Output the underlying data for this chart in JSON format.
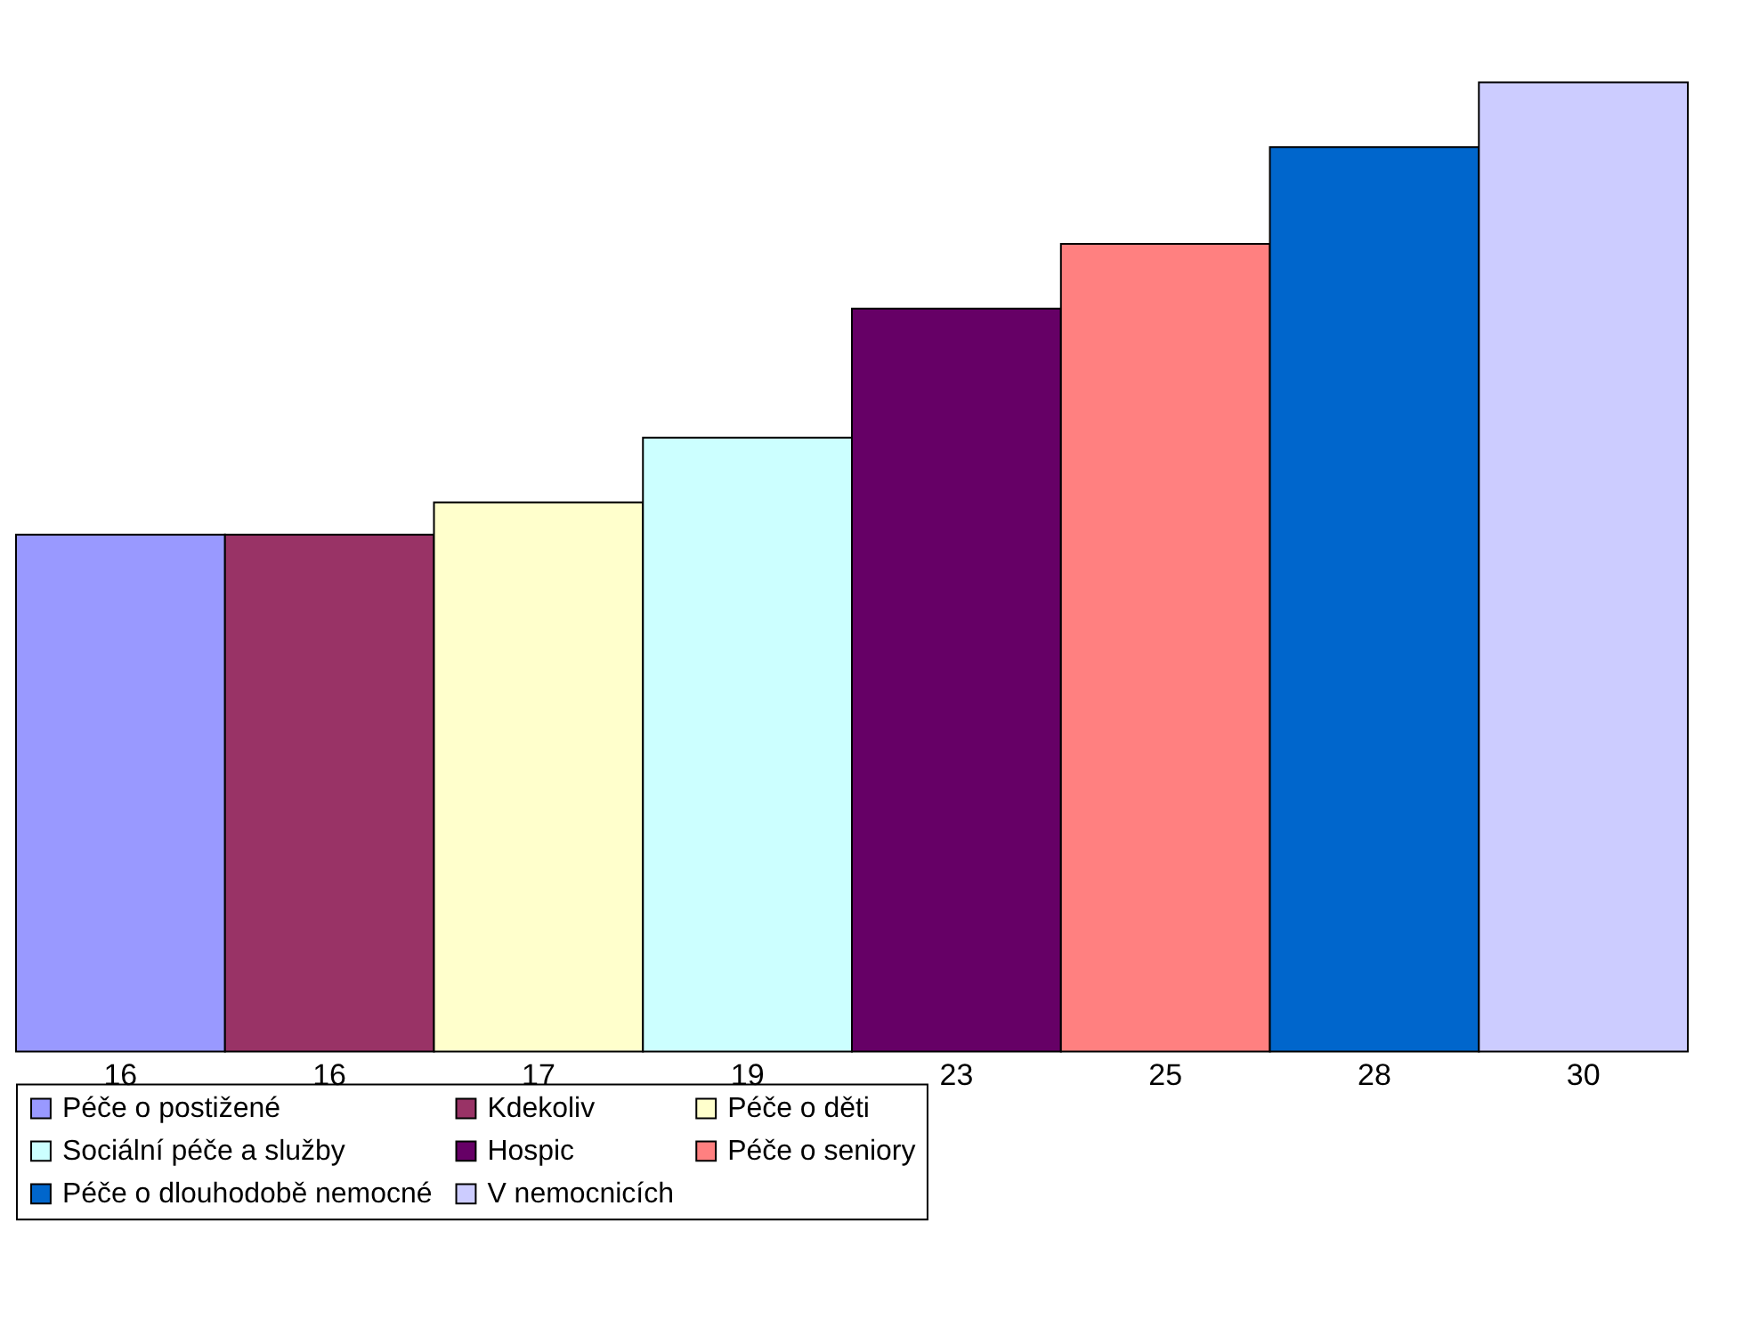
{
  "chart_data": {
    "type": "bar",
    "stacked": true,
    "categories": [
      null,
      null,
      null,
      null,
      null,
      null,
      null,
      null
    ],
    "series": [
      {
        "name": "Péče o postižené",
        "color": "#9999ff",
        "values": [
          16,
          null,
          null,
          null,
          null,
          null,
          null,
          null
        ]
      },
      {
        "name": "Kdekoliv",
        "color": "#993366",
        "values": [
          null,
          16,
          null,
          null,
          null,
          null,
          null,
          null
        ]
      },
      {
        "name": "Péče o děti",
        "color": "#ffffcc",
        "values": [
          null,
          null,
          17,
          null,
          null,
          null,
          null,
          null
        ]
      },
      {
        "name": "Sociální péče a služby",
        "color": "#ccffff",
        "values": [
          null,
          null,
          null,
          19,
          null,
          null,
          null,
          null
        ]
      },
      {
        "name": "Hospic",
        "color": "#660066",
        "values": [
          null,
          null,
          null,
          null,
          23,
          null,
          null,
          null
        ]
      },
      {
        "name": "Péče o seniory",
        "color": "#ff8080",
        "values": [
          null,
          null,
          null,
          null,
          null,
          25,
          null,
          null
        ]
      },
      {
        "name": "Péče o dlouhodobě nemocné",
        "color": "#0066cc",
        "values": [
          null,
          null,
          null,
          null,
          null,
          null,
          28,
          null
        ]
      },
      {
        "name": "V nemocnicích",
        "color": "#ccccff",
        "values": [
          null,
          null,
          null,
          null,
          null,
          null,
          null,
          30
        ]
      }
    ],
    "data_labels": true,
    "legend": "bottom"
  }
}
